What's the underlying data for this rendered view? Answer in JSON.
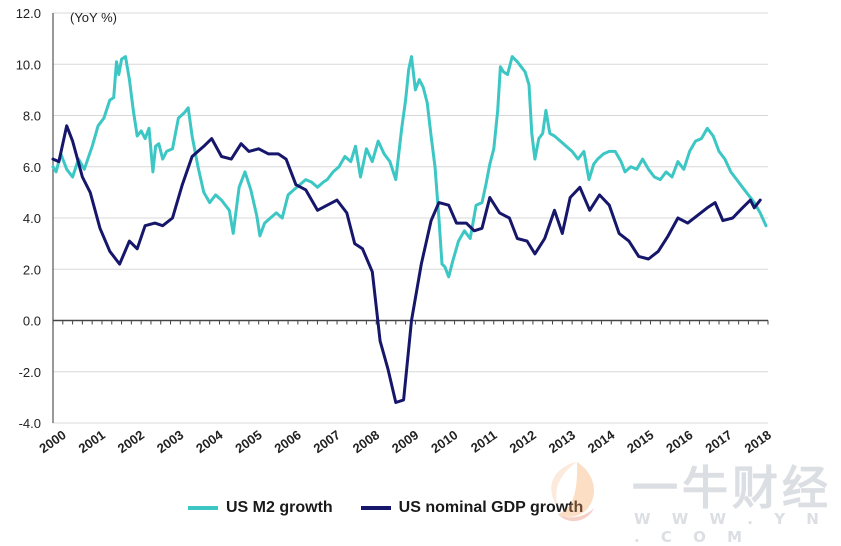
{
  "chart_data": {
    "type": "line",
    "unit_label": "(YoY %)",
    "ylim": [
      -4.0,
      12.0
    ],
    "yticks": [
      "12.0",
      "10.0",
      "8.0",
      "6.0",
      "4.0",
      "2.0",
      "0.0",
      "-2.0",
      "-4.0"
    ],
    "ytick_values": [
      12,
      10,
      8,
      6,
      4,
      2,
      0,
      -2,
      -4
    ],
    "xlim": [
      2000,
      2018.25
    ],
    "xticks": [
      "2000",
      "2001",
      "2002",
      "2003",
      "2004",
      "2005",
      "2006",
      "2007",
      "2008",
      "2009",
      "2010",
      "2011",
      "2012",
      "2013",
      "2014",
      "2015",
      "2016",
      "2017",
      "2018"
    ],
    "xtick_values": [
      2000,
      2001,
      2002,
      2003,
      2004,
      2005,
      2006,
      2007,
      2008,
      2009,
      2010,
      2011,
      2012,
      2013,
      2014,
      2015,
      2016,
      2017,
      2018
    ],
    "series": [
      {
        "name": "US M2 growth",
        "color": "#3cc7c4",
        "points": [
          [
            2000.0,
            6.0
          ],
          [
            2000.08,
            5.8
          ],
          [
            2000.2,
            6.5
          ],
          [
            2000.35,
            5.9
          ],
          [
            2000.5,
            5.6
          ],
          [
            2000.65,
            6.3
          ],
          [
            2000.8,
            5.9
          ],
          [
            2001.0,
            6.8
          ],
          [
            2001.15,
            7.6
          ],
          [
            2001.3,
            7.9
          ],
          [
            2001.45,
            8.6
          ],
          [
            2001.55,
            8.7
          ],
          [
            2001.62,
            10.1
          ],
          [
            2001.68,
            9.6
          ],
          [
            2001.75,
            10.2
          ],
          [
            2001.85,
            10.3
          ],
          [
            2001.95,
            9.4
          ],
          [
            2002.05,
            8.2
          ],
          [
            2002.15,
            7.2
          ],
          [
            2002.25,
            7.4
          ],
          [
            2002.35,
            7.1
          ],
          [
            2002.45,
            7.5
          ],
          [
            2002.55,
            5.8
          ],
          [
            2002.62,
            6.8
          ],
          [
            2002.7,
            6.9
          ],
          [
            2002.8,
            6.3
          ],
          [
            2002.9,
            6.6
          ],
          [
            2003.05,
            6.7
          ],
          [
            2003.2,
            7.9
          ],
          [
            2003.35,
            8.1
          ],
          [
            2003.45,
            8.3
          ],
          [
            2003.55,
            7.2
          ],
          [
            2003.7,
            6.0
          ],
          [
            2003.85,
            5.0
          ],
          [
            2004.0,
            4.6
          ],
          [
            2004.15,
            4.9
          ],
          [
            2004.3,
            4.7
          ],
          [
            2004.5,
            4.3
          ],
          [
            2004.6,
            3.4
          ],
          [
            2004.75,
            5.2
          ],
          [
            2004.9,
            5.8
          ],
          [
            2005.05,
            5.1
          ],
          [
            2005.2,
            4.1
          ],
          [
            2005.28,
            3.3
          ],
          [
            2005.4,
            3.8
          ],
          [
            2005.55,
            4.0
          ],
          [
            2005.7,
            4.2
          ],
          [
            2005.85,
            4.0
          ],
          [
            2006.0,
            4.9
          ],
          [
            2006.15,
            5.1
          ],
          [
            2006.3,
            5.3
          ],
          [
            2006.45,
            5.5
          ],
          [
            2006.6,
            5.4
          ],
          [
            2006.75,
            5.2
          ],
          [
            2006.9,
            5.4
          ],
          [
            2007.0,
            5.5
          ],
          [
            2007.15,
            5.8
          ],
          [
            2007.3,
            6.0
          ],
          [
            2007.45,
            6.4
          ],
          [
            2007.6,
            6.2
          ],
          [
            2007.72,
            6.8
          ],
          [
            2007.85,
            5.6
          ],
          [
            2008.0,
            6.7
          ],
          [
            2008.15,
            6.2
          ],
          [
            2008.3,
            7.0
          ],
          [
            2008.45,
            6.5
          ],
          [
            2008.6,
            6.2
          ],
          [
            2008.75,
            5.5
          ],
          [
            2008.9,
            7.5
          ],
          [
            2009.0,
            8.6
          ],
          [
            2009.08,
            9.8
          ],
          [
            2009.15,
            10.3
          ],
          [
            2009.25,
            9.0
          ],
          [
            2009.35,
            9.4
          ],
          [
            2009.45,
            9.1
          ],
          [
            2009.55,
            8.5
          ],
          [
            2009.65,
            7.2
          ],
          [
            2009.75,
            6.0
          ],
          [
            2009.85,
            4.0
          ],
          [
            2009.93,
            2.2
          ],
          [
            2010.0,
            2.1
          ],
          [
            2010.1,
            1.7
          ],
          [
            2010.2,
            2.3
          ],
          [
            2010.35,
            3.1
          ],
          [
            2010.5,
            3.5
          ],
          [
            2010.65,
            3.2
          ],
          [
            2010.8,
            4.5
          ],
          [
            2010.95,
            4.6
          ],
          [
            2011.05,
            5.3
          ],
          [
            2011.15,
            6.1
          ],
          [
            2011.25,
            6.7
          ],
          [
            2011.35,
            8.2
          ],
          [
            2011.42,
            9.9
          ],
          [
            2011.5,
            9.7
          ],
          [
            2011.6,
            9.6
          ],
          [
            2011.72,
            10.3
          ],
          [
            2011.85,
            10.1
          ],
          [
            2011.95,
            9.9
          ],
          [
            2012.05,
            9.7
          ],
          [
            2012.15,
            9.2
          ],
          [
            2012.22,
            7.3
          ],
          [
            2012.3,
            6.3
          ],
          [
            2012.4,
            7.1
          ],
          [
            2012.5,
            7.3
          ],
          [
            2012.58,
            8.2
          ],
          [
            2012.68,
            7.3
          ],
          [
            2012.8,
            7.2
          ],
          [
            2012.95,
            7.0
          ],
          [
            2013.1,
            6.8
          ],
          [
            2013.25,
            6.6
          ],
          [
            2013.4,
            6.3
          ],
          [
            2013.55,
            6.6
          ],
          [
            2013.68,
            5.5
          ],
          [
            2013.8,
            6.1
          ],
          [
            2013.9,
            6.3
          ],
          [
            2014.05,
            6.5
          ],
          [
            2014.2,
            6.6
          ],
          [
            2014.35,
            6.6
          ],
          [
            2014.5,
            6.2
          ],
          [
            2014.6,
            5.8
          ],
          [
            2014.75,
            6.0
          ],
          [
            2014.9,
            5.9
          ],
          [
            2015.05,
            6.3
          ],
          [
            2015.2,
            5.9
          ],
          [
            2015.35,
            5.6
          ],
          [
            2015.5,
            5.5
          ],
          [
            2015.65,
            5.8
          ],
          [
            2015.8,
            5.6
          ],
          [
            2015.95,
            6.2
          ],
          [
            2016.1,
            5.9
          ],
          [
            2016.25,
            6.6
          ],
          [
            2016.4,
            7.0
          ],
          [
            2016.55,
            7.1
          ],
          [
            2016.7,
            7.5
          ],
          [
            2016.85,
            7.2
          ],
          [
            2017.0,
            6.6
          ],
          [
            2017.15,
            6.3
          ],
          [
            2017.3,
            5.8
          ],
          [
            2017.45,
            5.5
          ],
          [
            2017.6,
            5.2
          ],
          [
            2017.75,
            4.9
          ],
          [
            2017.9,
            4.6
          ],
          [
            2018.05,
            4.2
          ],
          [
            2018.2,
            3.7
          ]
        ]
      },
      {
        "name": "US nominal GDP growth",
        "color": "#16166b",
        "points": [
          [
            2000.0,
            6.3
          ],
          [
            2000.15,
            6.2
          ],
          [
            2000.35,
            7.6
          ],
          [
            2000.5,
            7.0
          ],
          [
            2000.75,
            5.6
          ],
          [
            2000.95,
            5.0
          ],
          [
            2001.2,
            3.6
          ],
          [
            2001.45,
            2.7
          ],
          [
            2001.7,
            2.2
          ],
          [
            2001.95,
            3.1
          ],
          [
            2002.15,
            2.8
          ],
          [
            2002.35,
            3.7
          ],
          [
            2002.6,
            3.8
          ],
          [
            2002.8,
            3.7
          ],
          [
            2003.05,
            4.0
          ],
          [
            2003.3,
            5.3
          ],
          [
            2003.55,
            6.4
          ],
          [
            2003.85,
            6.8
          ],
          [
            2004.05,
            7.1
          ],
          [
            2004.3,
            6.4
          ],
          [
            2004.55,
            6.3
          ],
          [
            2004.8,
            6.9
          ],
          [
            2005.0,
            6.6
          ],
          [
            2005.25,
            6.7
          ],
          [
            2005.5,
            6.5
          ],
          [
            2005.75,
            6.5
          ],
          [
            2005.95,
            6.3
          ],
          [
            2006.2,
            5.3
          ],
          [
            2006.45,
            5.1
          ],
          [
            2006.75,
            4.3
          ],
          [
            2007.0,
            4.5
          ],
          [
            2007.25,
            4.7
          ],
          [
            2007.5,
            4.2
          ],
          [
            2007.7,
            3.0
          ],
          [
            2007.9,
            2.8
          ],
          [
            2008.15,
            1.9
          ],
          [
            2008.35,
            -0.8
          ],
          [
            2008.55,
            -1.9
          ],
          [
            2008.75,
            -3.2
          ],
          [
            2008.95,
            -3.1
          ],
          [
            2009.15,
            0.0
          ],
          [
            2009.4,
            2.2
          ],
          [
            2009.65,
            3.9
          ],
          [
            2009.85,
            4.6
          ],
          [
            2010.1,
            4.5
          ],
          [
            2010.3,
            3.8
          ],
          [
            2010.55,
            3.8
          ],
          [
            2010.75,
            3.5
          ],
          [
            2010.95,
            3.6
          ],
          [
            2011.15,
            4.8
          ],
          [
            2011.4,
            4.2
          ],
          [
            2011.65,
            4.0
          ],
          [
            2011.85,
            3.2
          ],
          [
            2012.1,
            3.1
          ],
          [
            2012.3,
            2.6
          ],
          [
            2012.55,
            3.2
          ],
          [
            2012.8,
            4.3
          ],
          [
            2013.0,
            3.4
          ],
          [
            2013.2,
            4.8
          ],
          [
            2013.45,
            5.2
          ],
          [
            2013.7,
            4.3
          ],
          [
            2013.95,
            4.9
          ],
          [
            2014.2,
            4.5
          ],
          [
            2014.45,
            3.4
          ],
          [
            2014.7,
            3.1
          ],
          [
            2014.95,
            2.5
          ],
          [
            2015.2,
            2.4
          ],
          [
            2015.45,
            2.7
          ],
          [
            2015.7,
            3.3
          ],
          [
            2015.95,
            4.0
          ],
          [
            2016.2,
            3.8
          ],
          [
            2016.45,
            4.1
          ],
          [
            2016.7,
            4.4
          ],
          [
            2016.9,
            4.6
          ],
          [
            2017.1,
            3.9
          ],
          [
            2017.35,
            4.0
          ],
          [
            2017.6,
            4.4
          ],
          [
            2017.8,
            4.7
          ],
          [
            2017.9,
            4.4
          ],
          [
            2018.05,
            4.7
          ]
        ]
      }
    ]
  },
  "legend": {
    "m2_label": "US M2 growth",
    "gdp_label": "US nominal GDP growth",
    "m2_color": "#3cc7c4",
    "gdp_color": "#16166b"
  },
  "watermark": {
    "brand": "一牛财经",
    "url": "W W W . Y N . C O M"
  }
}
